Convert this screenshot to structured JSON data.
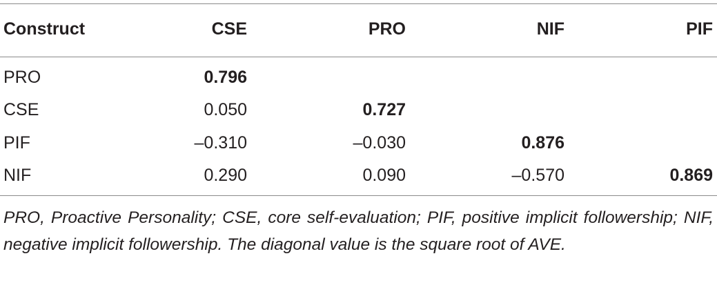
{
  "table": {
    "header": [
      "Construct",
      "CSE",
      "PRO",
      "NIF",
      "PIF"
    ],
    "rows": [
      [
        "PRO",
        "0.796"
      ],
      [
        "CSE",
        "0.050",
        "0.727"
      ],
      [
        "PIF",
        "–0.310",
        "–0.030",
        "0.876"
      ],
      [
        "NIF",
        "0.290",
        "0.090",
        "–0.570",
        "0.869"
      ]
    ],
    "footnote": "PRO, Proactive Personality; CSE, core self-evaluation; PIF, positive implicit followership; NIF, negative implicit followership. The diagonal value is the square root of AVE."
  }
}
